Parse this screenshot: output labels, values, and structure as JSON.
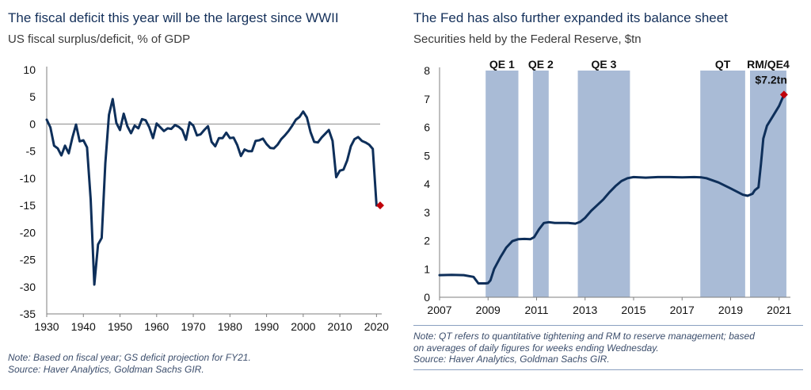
{
  "colors": {
    "line": "#0e2f5a",
    "marker": "#c0000a",
    "band": "#a9bbd6",
    "axis": "#7f7f7f"
  },
  "left": {
    "title": "The fiscal deficit this year will be the largest since WWII",
    "subtitle": "US fiscal surplus/deficit, % of GDP",
    "note_1": "Note: Based on fiscal year; GS deficit projection for FY21.",
    "note_2": "Source: Haver Analytics, Goldman Sachs GIR."
  },
  "right": {
    "title": "The Fed has also further expanded its balance sheet",
    "subtitle": "Securities held by the Federal Reserve, $tn",
    "note_1": "Note: QT refers to quantitative tightening and RM to reserve management; based",
    "note_2": "on averages of daily figures for weeks ending Wednesday.",
    "note_3": "Source: Haver Analytics, Goldman Sachs GIR."
  },
  "chart_data": [
    {
      "type": "line",
      "title": "The fiscal deficit this year will be the largest since WWII",
      "subtitle": "US fiscal surplus/deficit, % of GDP",
      "xlim": [
        1930,
        2021
      ],
      "ylim": [
        -35,
        10
      ],
      "x_ticks": [
        1930,
        1940,
        1950,
        1960,
        1970,
        1980,
        1990,
        2000,
        2010,
        2020
      ],
      "y_ticks": [
        10,
        5,
        0,
        -5,
        -10,
        -15,
        -20,
        -25,
        -30,
        -35
      ],
      "zero_line": true,
      "series": [
        {
          "x": [
            1930,
            1931,
            1932,
            1933,
            1934,
            1935,
            1936,
            1937,
            1938,
            1939,
            1940,
            1941,
            1942,
            1943,
            1944,
            1945,
            1946,
            1947,
            1948,
            1949,
            1950,
            1951,
            1952,
            1953,
            1954,
            1955,
            1956,
            1957,
            1958,
            1959,
            1960,
            1961,
            1962,
            1963,
            1964,
            1965,
            1966,
            1967,
            1968,
            1969,
            1970,
            1971,
            1972,
            1973,
            1974,
            1975,
            1976,
            1977,
            1978,
            1979,
            1980,
            1981,
            1982,
            1983,
            1984,
            1985,
            1986,
            1987,
            1988,
            1989,
            1990,
            1991,
            1992,
            1993,
            1994,
            1995,
            1996,
            1997,
            1998,
            1999,
            2000,
            2001,
            2002,
            2003,
            2004,
            2005,
            2006,
            2007,
            2008,
            2009,
            2010,
            2011,
            2012,
            2013,
            2014,
            2015,
            2016,
            2017,
            2018,
            2019,
            2020
          ],
          "values": [
            0.8,
            -0.6,
            -4.0,
            -4.5,
            -5.8,
            -4.0,
            -5.4,
            -2.5,
            -0.1,
            -3.2,
            -3.0,
            -4.3,
            -13.9,
            -29.6,
            -22.2,
            -21.0,
            -7.2,
            1.7,
            4.6,
            0.2,
            -1.1,
            1.9,
            -0.4,
            -1.7,
            -0.3,
            -0.8,
            0.9,
            0.7,
            -0.6,
            -2.6,
            0.1,
            -0.6,
            -1.3,
            -0.8,
            -0.9,
            -0.2,
            -0.5,
            -1.1,
            -2.9,
            0.3,
            -0.3,
            -2.1,
            -1.9,
            -1.1,
            -0.4,
            -3.3,
            -4.1,
            -2.6,
            -2.6,
            -1.6,
            -2.6,
            -2.5,
            -3.9,
            -5.9,
            -4.7,
            -5.0,
            -5.0,
            -3.1,
            -3.0,
            -2.7,
            -3.7,
            -4.4,
            -4.5,
            -3.8,
            -2.8,
            -2.1,
            -1.3,
            -0.3,
            0.8,
            1.3,
            2.3,
            1.2,
            -1.5,
            -3.3,
            -3.4,
            -2.5,
            -1.8,
            -1.1,
            -3.1,
            -9.8,
            -8.6,
            -8.4,
            -6.7,
            -4.1,
            -2.8,
            -2.4,
            -3.1,
            -3.4,
            -3.8,
            -4.6,
            -15.0
          ]
        }
      ],
      "highlight_point": {
        "x": 2021,
        "y": -15.0
      }
    },
    {
      "type": "line",
      "title": "The Fed has also further expanded its balance sheet",
      "subtitle": "Securities held by the Federal Reserve, $tn",
      "xlim": [
        2007,
        2021.4
      ],
      "ylim": [
        0,
        8
      ],
      "x_ticks": [
        2007,
        2009,
        2011,
        2013,
        2015,
        2017,
        2019,
        2021
      ],
      "y_ticks": [
        0,
        1,
        2,
        3,
        4,
        5,
        6,
        7,
        8
      ],
      "bands": [
        {
          "label": "QE 1",
          "start": 2008.9,
          "end": 2010.25
        },
        {
          "label": "QE 2",
          "start": 2010.85,
          "end": 2011.5
        },
        {
          "label": "QE 3",
          "start": 2012.7,
          "end": 2014.85
        },
        {
          "label": "QT",
          "start": 2017.75,
          "end": 2019.6
        },
        {
          "label": "RM/QE4",
          "start": 2019.8,
          "end": 2021.3
        }
      ],
      "series": [
        {
          "x": [
            2007.0,
            2007.5,
            2008.0,
            2008.4,
            2008.6,
            2008.9,
            2009.0,
            2009.1,
            2009.25,
            2009.5,
            2009.75,
            2010.0,
            2010.25,
            2010.5,
            2010.75,
            2010.9,
            2011.1,
            2011.3,
            2011.5,
            2011.75,
            2012.0,
            2012.3,
            2012.6,
            2012.8,
            2013.0,
            2013.25,
            2013.5,
            2013.75,
            2014.0,
            2014.25,
            2014.5,
            2014.75,
            2015.0,
            2015.5,
            2016.0,
            2016.5,
            2017.0,
            2017.5,
            2017.8,
            2018.0,
            2018.5,
            2019.0,
            2019.5,
            2019.7,
            2019.9,
            2020.0,
            2020.15,
            2020.25,
            2020.35,
            2020.5,
            2020.75,
            2021.0,
            2021.2
          ],
          "values": [
            0.78,
            0.79,
            0.78,
            0.72,
            0.49,
            0.49,
            0.5,
            0.6,
            1.0,
            1.4,
            1.75,
            1.98,
            2.05,
            2.06,
            2.05,
            2.12,
            2.4,
            2.62,
            2.65,
            2.62,
            2.62,
            2.62,
            2.6,
            2.66,
            2.8,
            3.05,
            3.25,
            3.45,
            3.7,
            3.92,
            4.1,
            4.2,
            4.24,
            4.22,
            4.24,
            4.24,
            4.23,
            4.24,
            4.23,
            4.2,
            4.05,
            3.84,
            3.62,
            3.58,
            3.65,
            3.78,
            3.88,
            4.7,
            5.6,
            6.05,
            6.4,
            6.75,
            7.15
          ]
        }
      ],
      "highlight_point": {
        "x": 2021.2,
        "y": 7.15,
        "label": "$7.2tn"
      }
    }
  ]
}
